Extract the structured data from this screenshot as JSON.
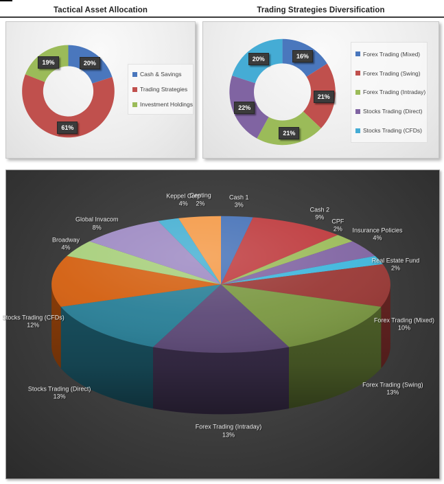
{
  "page": {
    "background": "#FFFFFF",
    "top_left_mark_color": "#000000",
    "header_rule_color": "#3C3C3C"
  },
  "chart_data": [
    {
      "id": "tactical-asset-allocation",
      "type": "donut",
      "title": "Tactical Asset Allocation",
      "categories": [
        "Cash & Savings",
        "Trading Strategies",
        "Investment Holdings"
      ],
      "values": [
        20,
        61,
        19
      ],
      "labels": [
        "20%",
        "61%",
        "19%"
      ],
      "colors": [
        "#4A77BD",
        "#C0504D",
        "#9BBB59"
      ],
      "legend_position": "right",
      "background": "#EDEDED",
      "data_label_box": {
        "bg": "#3B3B3B",
        "text": "#FFFFFF"
      }
    },
    {
      "id": "trading-strategies-diversification",
      "type": "donut",
      "title": "Trading Strategies Diversification",
      "categories": [
        "Forex Trading (Mixed)",
        "Forex Trading (Swing)",
        "Forex Trading (Intraday)",
        "Stocks Trading (Direct)",
        "Stocks Trading (CFDs)"
      ],
      "values": [
        16,
        21,
        21,
        22,
        20
      ],
      "labels": [
        "16%",
        "21%",
        "21%",
        "22%",
        "20%"
      ],
      "colors": [
        "#4A77BD",
        "#C0504D",
        "#9BBB59",
        "#8064A2",
        "#45ACD5"
      ],
      "legend_position": "right",
      "background": "#EDEDED",
      "data_label_box": {
        "bg": "#3B3B3B",
        "text": "#FFFFFF"
      }
    },
    {
      "id": "overall-portfolio-3d-pie",
      "type": "pie",
      "variant": "3d",
      "categories": [
        "Cash 1",
        "Cash 2",
        "CPF",
        "Insurance Policies",
        "Real Estate Fund",
        "Forex Trading (Mixed)",
        "Forex Trading (Swing)",
        "Forex Trading (Intraday)",
        "Stocks Trading (Direct)",
        "Stocks Trading (CFDs)",
        "Broadway",
        "Global Invacom",
        "Genting",
        "Keppel Corp"
      ],
      "values": [
        3,
        9,
        2,
        4,
        2,
        10,
        13,
        13,
        13,
        12,
        4,
        8,
        2,
        4
      ],
      "labels": [
        "3%",
        "9%",
        "2%",
        "4%",
        "2%",
        "10%",
        "13%",
        "13%",
        "13%",
        "12%",
        "4%",
        "8%",
        "2%",
        "4%"
      ],
      "colors": [
        "#4571B7",
        "#BE3A3D",
        "#9BBB59",
        "#8064A2",
        "#3EB6DC",
        "#993734",
        "#7A9741",
        "#5C4876",
        "#277E96",
        "#D35E0E",
        "#A6CE79",
        "#9C88C2",
        "#45AFD2",
        "#F49946"
      ],
      "label_text_color": "#ECECEC",
      "background": "#3C3C3C",
      "legend_position": "none"
    }
  ]
}
